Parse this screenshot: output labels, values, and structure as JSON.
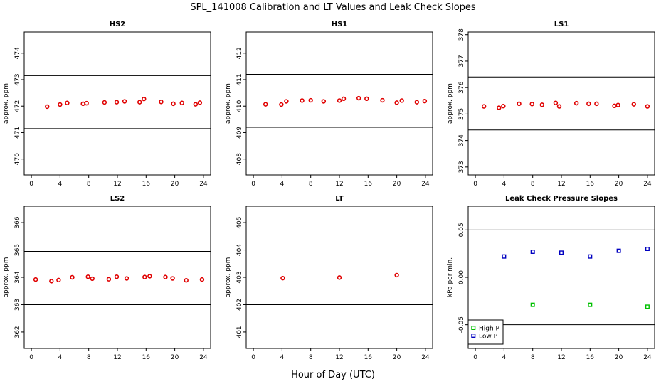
{
  "figure": {
    "title": "SPL_141008  Calibration and LT Values and Leak Check Slopes",
    "xlabel": "Hour of Day (UTC)"
  },
  "colors": {
    "points": "#e00000",
    "high_p": "#00c000",
    "low_p": "#0000c0",
    "lines": "#000000"
  },
  "chart_data": [
    {
      "type": "scatter",
      "title": "HS2",
      "ylabel": "approx. ppm",
      "xlim": [
        -1,
        25
      ],
      "ylim": [
        469.4,
        474.8
      ],
      "xticks": [
        0,
        4,
        8,
        12,
        16,
        20,
        24
      ],
      "yticks": [
        470,
        471,
        472,
        473,
        474
      ],
      "hlines": [
        471.15,
        473.15
      ],
      "series": [
        {
          "x": [
            2.2,
            4.0,
            5.0,
            7.2,
            7.7,
            10.2,
            11.9,
            13.0,
            15.1,
            15.7,
            18.1,
            19.8,
            21.0,
            22.9,
            23.5
          ],
          "y": [
            471.98,
            472.06,
            472.12,
            472.09,
            472.11,
            472.14,
            472.15,
            472.18,
            472.15,
            472.27,
            472.16,
            472.09,
            472.12,
            472.07,
            472.13
          ]
        }
      ]
    },
    {
      "type": "scatter",
      "title": "HS1",
      "ylabel": "approx. ppm",
      "xlim": [
        -1,
        25
      ],
      "ylim": [
        407.4,
        412.8
      ],
      "xticks": [
        0,
        4,
        8,
        12,
        16,
        20,
        24
      ],
      "yticks": [
        408,
        409,
        410,
        411,
        412
      ],
      "hlines": [
        409.2,
        411.2
      ],
      "series": [
        {
          "x": [
            1.7,
            3.9,
            4.6,
            6.8,
            8.0,
            9.8,
            12.0,
            12.6,
            14.7,
            15.8,
            18.0,
            20.0,
            20.7,
            22.8,
            23.9
          ],
          "y": [
            410.07,
            410.06,
            410.18,
            410.21,
            410.22,
            410.18,
            410.21,
            410.28,
            410.3,
            410.28,
            410.22,
            410.13,
            410.21,
            410.15,
            410.19
          ]
        }
      ]
    },
    {
      "type": "scatter",
      "title": "LS1",
      "ylabel": "approx. ppm",
      "xlim": [
        -1,
        25
      ],
      "ylim": [
        372.7,
        378.1
      ],
      "xticks": [
        0,
        4,
        8,
        12,
        16,
        20,
        24
      ],
      "yticks": [
        373,
        374,
        375,
        376,
        377,
        378
      ],
      "hlines": [
        374.4,
        376.4
      ],
      "series": [
        {
          "x": [
            1.2,
            3.3,
            3.9,
            6.1,
            7.9,
            9.3,
            11.2,
            11.7,
            14.1,
            15.8,
            16.9,
            19.4,
            19.9,
            22.1,
            24.0
          ],
          "y": [
            375.29,
            375.24,
            375.3,
            375.39,
            375.38,
            375.35,
            375.42,
            375.29,
            375.41,
            375.39,
            375.39,
            375.31,
            375.34,
            375.37,
            375.29
          ]
        }
      ]
    },
    {
      "type": "scatter",
      "title": "LS2",
      "ylabel": "approx. ppm",
      "xlim": [
        -1,
        25
      ],
      "ylim": [
        361.4,
        366.6
      ],
      "xticks": [
        0,
        4,
        8,
        12,
        16,
        20,
        24
      ],
      "yticks": [
        362,
        363,
        364,
        365,
        366
      ],
      "hlines": [
        363.0,
        364.95
      ],
      "series": [
        {
          "x": [
            0.6,
            2.8,
            3.8,
            5.7,
            7.9,
            8.5,
            10.8,
            11.9,
            13.3,
            15.8,
            16.5,
            18.7,
            19.7,
            21.6,
            23.8
          ],
          "y": [
            363.92,
            363.86,
            363.9,
            364.0,
            364.02,
            363.95,
            363.93,
            364.02,
            363.96,
            364.01,
            364.04,
            364.01,
            363.96,
            363.89,
            363.92
          ]
        }
      ]
    },
    {
      "type": "scatter",
      "title": "LT",
      "ylabel": "approx. ppm",
      "xlim": [
        -1,
        25
      ],
      "ylim": [
        400.4,
        405.6
      ],
      "xticks": [
        0,
        4,
        8,
        12,
        16,
        20,
        24
      ],
      "yticks": [
        401,
        402,
        403,
        404,
        405
      ],
      "hlines": [
        402.0,
        404.0
      ],
      "series": [
        {
          "x": [
            4.1,
            12.0,
            20.0
          ],
          "y": [
            402.97,
            402.99,
            403.08
          ]
        }
      ]
    },
    {
      "type": "scatter",
      "title": "Leak Check Pressure Slopes",
      "ylabel": "kPa per min.",
      "xlim": [
        -1,
        25
      ],
      "ylim": [
        -0.075,
        0.075
      ],
      "xticks": [
        0,
        4,
        8,
        12,
        16,
        20,
        24
      ],
      "yticks": [
        -0.05,
        0.0,
        0.05
      ],
      "ytick_labels": [
        "-0.05",
        "0.00",
        "0.05"
      ],
      "hlines": [
        -0.05,
        0.05
      ],
      "legend_position": "bottom-left",
      "series": [
        {
          "name": "High P",
          "x": [
            8,
            16,
            24
          ],
          "y": [
            -0.029,
            -0.029,
            -0.031
          ]
        },
        {
          "name": "Low P",
          "x": [
            4,
            8,
            12,
            16,
            20,
            24
          ],
          "y": [
            0.022,
            0.027,
            0.026,
            0.022,
            0.028,
            0.03
          ]
        }
      ]
    }
  ]
}
